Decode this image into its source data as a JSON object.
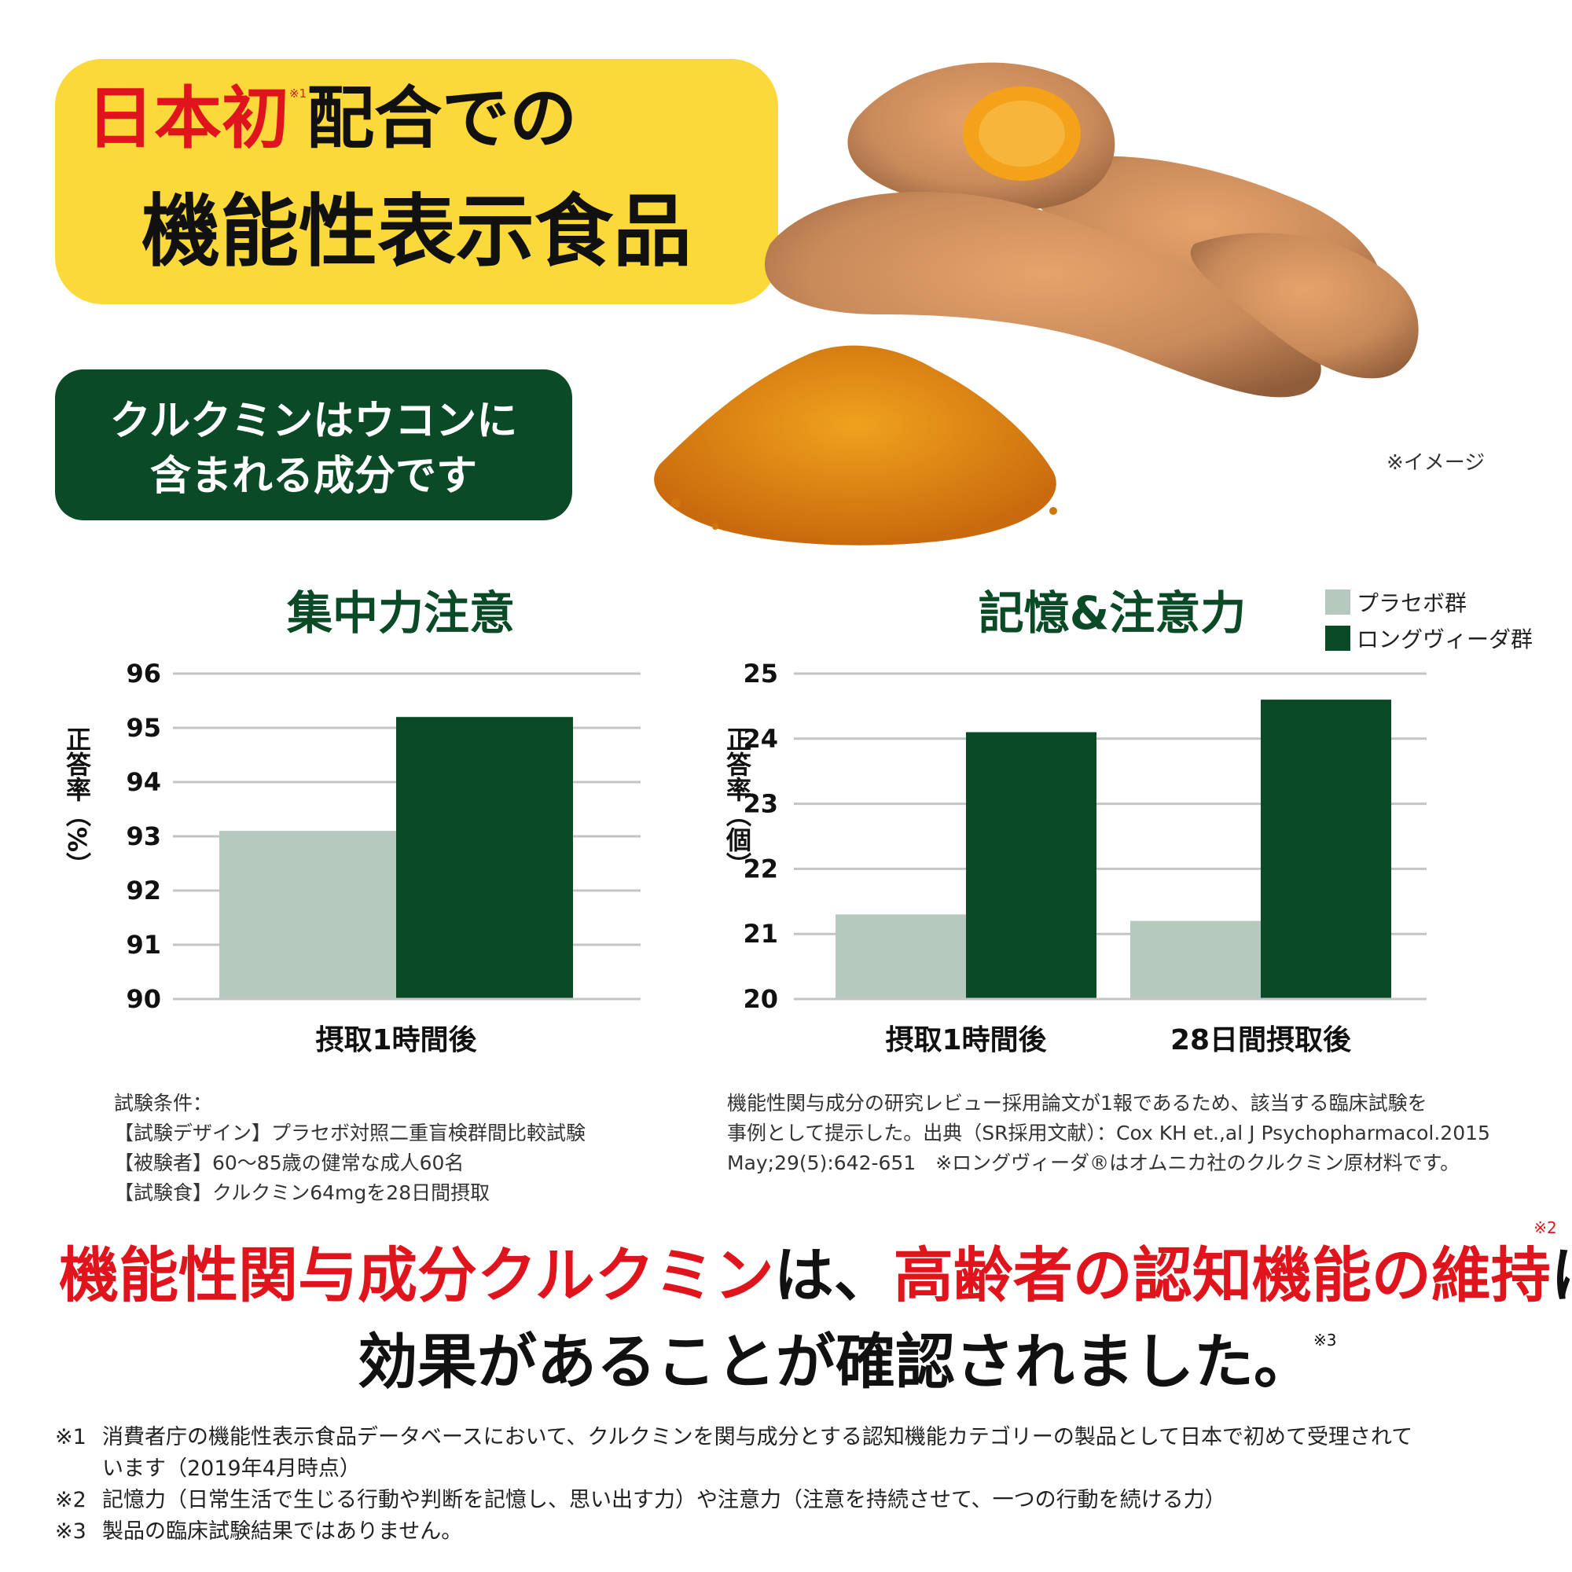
{
  "header": {
    "headline_red": "日本初",
    "headline_mark": "※1",
    "headline_rest": "配合での",
    "headline_line2": "機能性表示食品",
    "badge_line1": "クルクミンはウコンに",
    "badge_line2": "含まれる成分です",
    "image_note": "※イメージ"
  },
  "legend": {
    "items": [
      {
        "label": "プラセボ群",
        "color": "#b5c9bf"
      },
      {
        "label": "ロングヴィーダ群",
        "color": "#0a4a27"
      }
    ]
  },
  "chart_data": [
    {
      "type": "bar",
      "title": "集中力注意",
      "ylabel": "正答率（%）",
      "categories": [
        "摂取1時間後"
      ],
      "ylim": [
        90,
        96
      ],
      "yticks": [
        90,
        91,
        92,
        93,
        94,
        95,
        96
      ],
      "grid": true,
      "series": [
        {
          "name": "プラセボ群",
          "color": "#b5c9bf",
          "values": [
            93.1
          ]
        },
        {
          "name": "ロングヴィーダ群",
          "color": "#0a4a27",
          "values": [
            95.2
          ]
        }
      ]
    },
    {
      "type": "bar",
      "title": "記憶&注意力",
      "ylabel": "正答率（個）",
      "categories": [
        "摂取1時間後",
        "28日間摂取後"
      ],
      "ylim": [
        20,
        25
      ],
      "yticks": [
        20,
        21,
        22,
        23,
        24,
        25
      ],
      "grid": true,
      "legend": "top-right",
      "series": [
        {
          "name": "プラセボ群",
          "color": "#b5c9bf",
          "values": [
            21.3,
            21.2
          ]
        },
        {
          "name": "ロングヴィーダ群",
          "color": "#0a4a27",
          "values": [
            24.1,
            24.6
          ]
        }
      ]
    }
  ],
  "notes": {
    "left": [
      "試験条件：",
      "【試験デザイン】プラセボ対照二重盲検群間比較試験",
      "【被験者】60～85歳の健常な成人60名",
      "【試験食】クルクミン64mgを28日間摂取"
    ],
    "right": [
      "機能性関与成分の研究レビュー採用論文が1報であるため、該当する臨床試験を",
      "事例として提示した。出典（SR採用文献）：Cox KH et.,al J Psychopharmacol.2015",
      "May;29(5):642-651　※ロングヴィーダ®はオムニカ社のクルクミン原材料です。"
    ]
  },
  "conclusion": {
    "part1_red": "機能性関与成分クルクミン",
    "part2": "は、",
    "part3_red": "高齢者の認知機能の維持",
    "part3_mark": "※2",
    "part4": "に",
    "line2": "効果があることが確認されました。",
    "line2_mark": "※3"
  },
  "footnotes": [
    {
      "mark": "※1",
      "text": "消費者庁の機能性表示食品データベースにおいて、クルクミンを関与成分とする認知機能カテゴリーの製品として日本で初めて受理されて",
      "cont": "います（2019年4月時点）"
    },
    {
      "mark": "※2",
      "text": "記憶力（日常生活で生じる行動や判断を記憶し、思い出す力）や注意力（注意を持続させて、一つの行動を続ける力）"
    },
    {
      "mark": "※3",
      "text": "製品の臨床試験結果ではありません。"
    }
  ]
}
